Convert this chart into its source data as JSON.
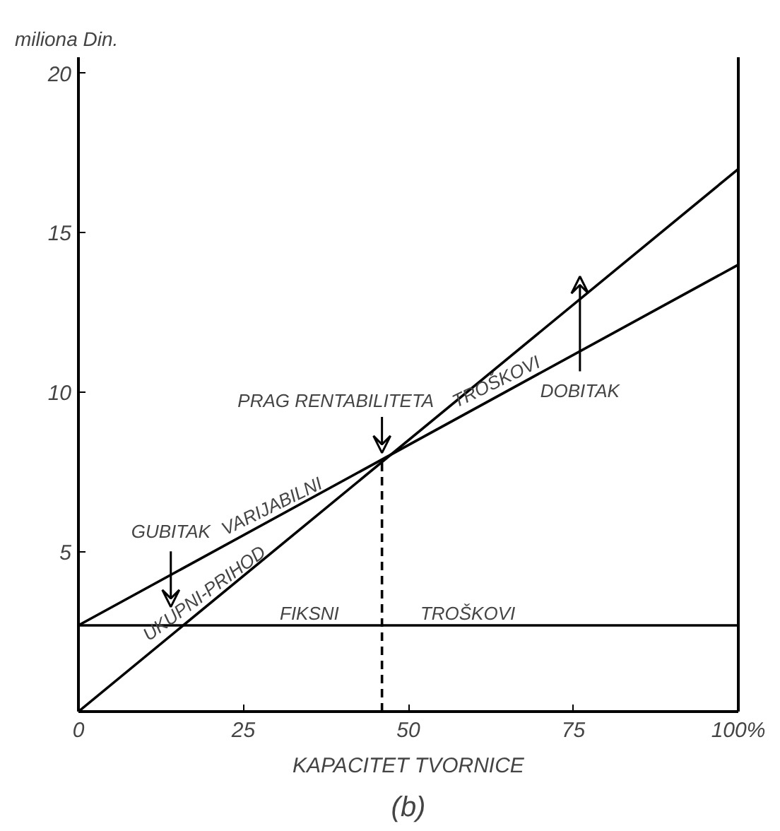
{
  "chart_data": {
    "type": "line",
    "title": "(b)",
    "xlabel": "KAPACITET TVORNICE",
    "ylabel": "miliona Din.",
    "x": [
      0,
      100
    ],
    "series": [
      {
        "color": "#000000",
        "values": [
          0,
          17
        ]
      },
      {
        "color": "#000000",
        "values": [
          2.7,
          14
        ]
      },
      {
        "color": "#000000",
        "values": [
          2.7,
          2.7
        ]
      }
    ],
    "xlim": [
      0,
      100
    ],
    "ylim": [
      0,
      20.5
    ],
    "xticks": [
      0,
      25,
      50,
      75,
      {
        "value": 100,
        "label": "100%"
      }
    ],
    "yticks": [
      {
        "value": 0,
        "label": null
      },
      5,
      10,
      15,
      20
    ],
    "ref_lines": [
      {
        "axis": "x",
        "value": 46,
        "label": null,
        "line_style": "dashed",
        "color": "#000000"
      }
    ],
    "annotations": [
      {
        "text": "VARIJABILNI",
        "x": 30,
        "y": 6.1
      },
      {
        "text": "TROŠKOVI",
        "x": 64,
        "y": 10.0
      },
      {
        "text": "UKUPNI-PRIHOD",
        "x": 20,
        "y": 3.4
      },
      {
        "text": "FIKSNI",
        "x": 35,
        "y": 2.7
      },
      {
        "text": "TROŠKOVI",
        "x": 59,
        "y": 2.7
      },
      "GUBITAK",
      "DOBITAK",
      {
        "text": "PRAG RENTABILITETA",
        "x": 46,
        "y": 7.9
      }
    ],
    "grid": false,
    "marker": "none",
    "line_style": "solid"
  }
}
